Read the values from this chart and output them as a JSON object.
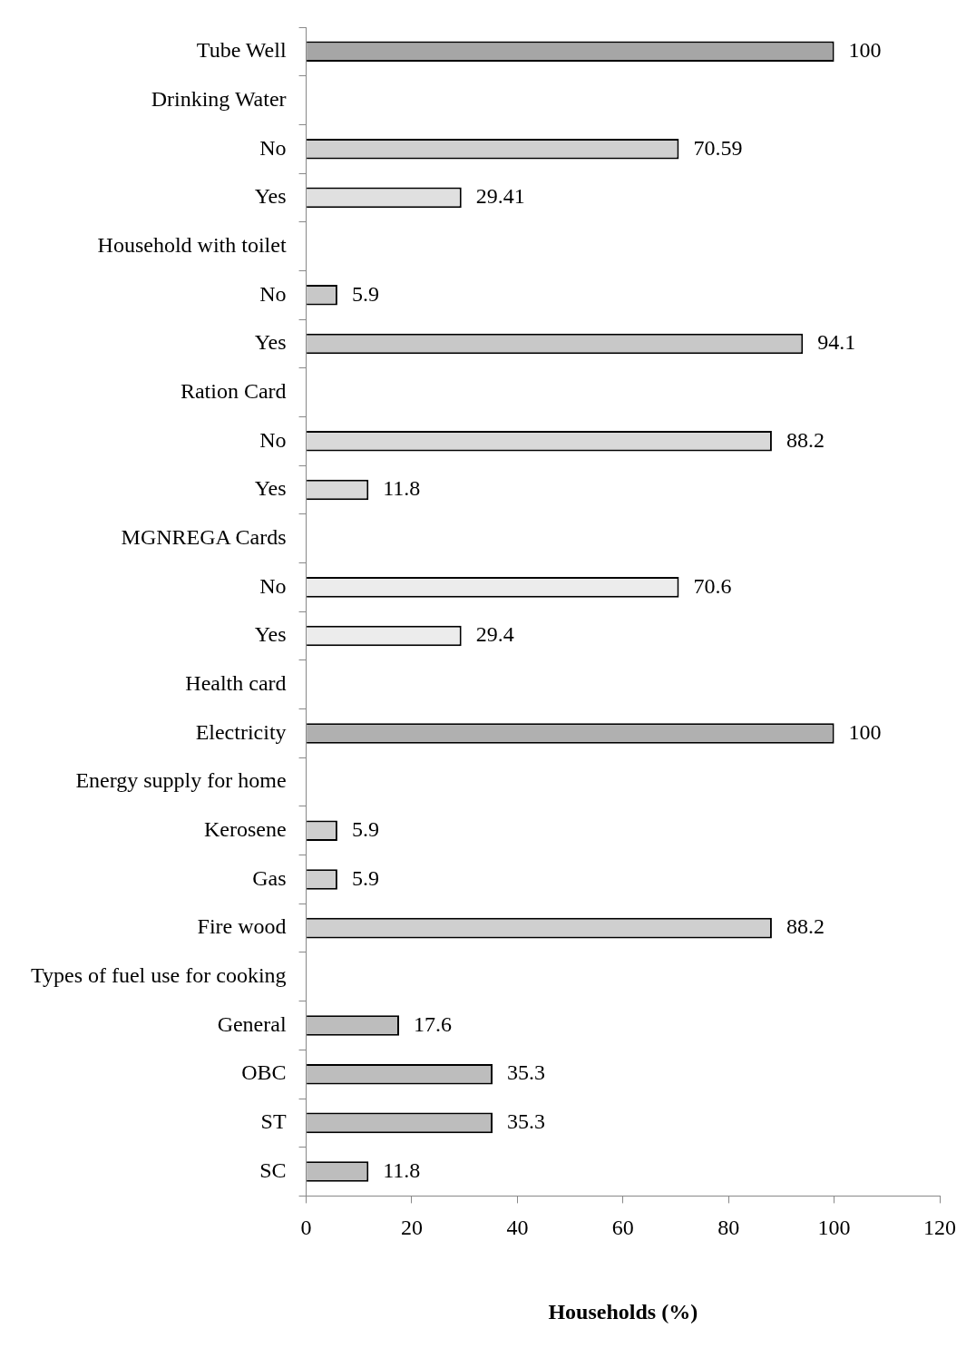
{
  "chart_data": {
    "type": "bar",
    "orientation": "horizontal",
    "xlabel": "Households (%)",
    "categories": [
      "Tube Well",
      "Drinking Water",
      "No",
      "Yes",
      "Household with toilet",
      "No",
      "Yes",
      "Ration Card",
      "No",
      "Yes",
      "MGNREGA Cards",
      "No",
      "Yes",
      "Health card",
      "Electricity",
      "Energy supply for home",
      "Kerosene",
      "Gas",
      "Fire wood",
      "Types of fuel use for cooking",
      "General",
      "OBC",
      "ST",
      "SC"
    ],
    "values": [
      100,
      null,
      70.59,
      29.41,
      null,
      5.9,
      94.1,
      null,
      88.2,
      11.8,
      null,
      70.6,
      29.4,
      null,
      100,
      null,
      5.9,
      5.9,
      88.2,
      null,
      17.6,
      35.3,
      35.3,
      11.8
    ],
    "colors": [
      "#a6a6a6",
      "#ffffff",
      "#d0d0d0",
      "#e0e0e0",
      "#ffffff",
      "#c8c8c8",
      "#c8c8c8",
      "#ffffff",
      "#d9d9d9",
      "#d9d9d9",
      "#ffffff",
      "#ececec",
      "#ececec",
      "#ffffff",
      "#b0b0b0",
      "#ffffff",
      "#cfcfcf",
      "#cfcfcf",
      "#cfcfcf",
      "#ffffff",
      "#bdbdbd",
      "#bdbdbd",
      "#bdbdbd",
      "#bdbdbd"
    ],
    "xlim": [
      0,
      120
    ],
    "xticks": [
      0,
      20,
      40,
      60,
      80,
      100,
      120
    ],
    "grid": false,
    "legend": false,
    "data_labels": true
  }
}
